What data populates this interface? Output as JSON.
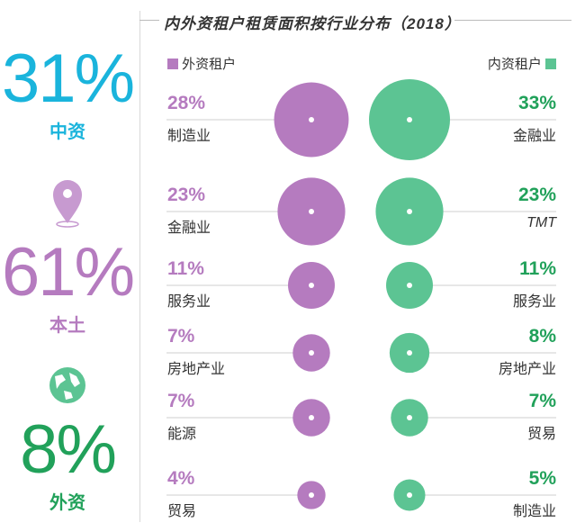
{
  "colors": {
    "cyan": "#1ab4dc",
    "purple": "#b57bbf",
    "green": "#5cc493",
    "green_text": "#21a15a",
    "line": "#cfcfcf"
  },
  "left": {
    "stats": [
      {
        "value": "31%",
        "label": "中资",
        "color": "#1ab4dc"
      },
      {
        "value": "61%",
        "label": "本土",
        "color": "#b57bbf"
      },
      {
        "value": "8%",
        "label": "外资",
        "color": "#21a15a"
      }
    ],
    "icons": [
      "location-pin-icon",
      "globe-icon"
    ]
  },
  "title": "内外资租户租赁面积按行业分布（2018）",
  "legend": {
    "foreign": "外资租户",
    "domestic": "内资租户"
  },
  "chart_data": {
    "type": "bubble",
    "title": "内外资租户租赁面积按行业分布（2018）",
    "series": [
      {
        "name": "外资租户",
        "color": "#b57bbf",
        "categories": [
          "制造业",
          "金融业",
          "服务业",
          "房地产业",
          "能源",
          "贸易"
        ],
        "values": [
          28,
          23,
          11,
          7,
          7,
          4
        ],
        "labels": [
          "28%",
          "23%",
          "11%",
          "7%",
          "7%",
          "4%"
        ]
      },
      {
        "name": "内资租户",
        "color": "#5cc493",
        "categories": [
          "金融业",
          "TMT",
          "服务业",
          "房地产业",
          "贸易",
          "制造业"
        ],
        "values": [
          33,
          23,
          11,
          8,
          7,
          5
        ],
        "labels": [
          "33%",
          "23%",
          "11%",
          "8%",
          "7%",
          "5%"
        ]
      }
    ]
  }
}
